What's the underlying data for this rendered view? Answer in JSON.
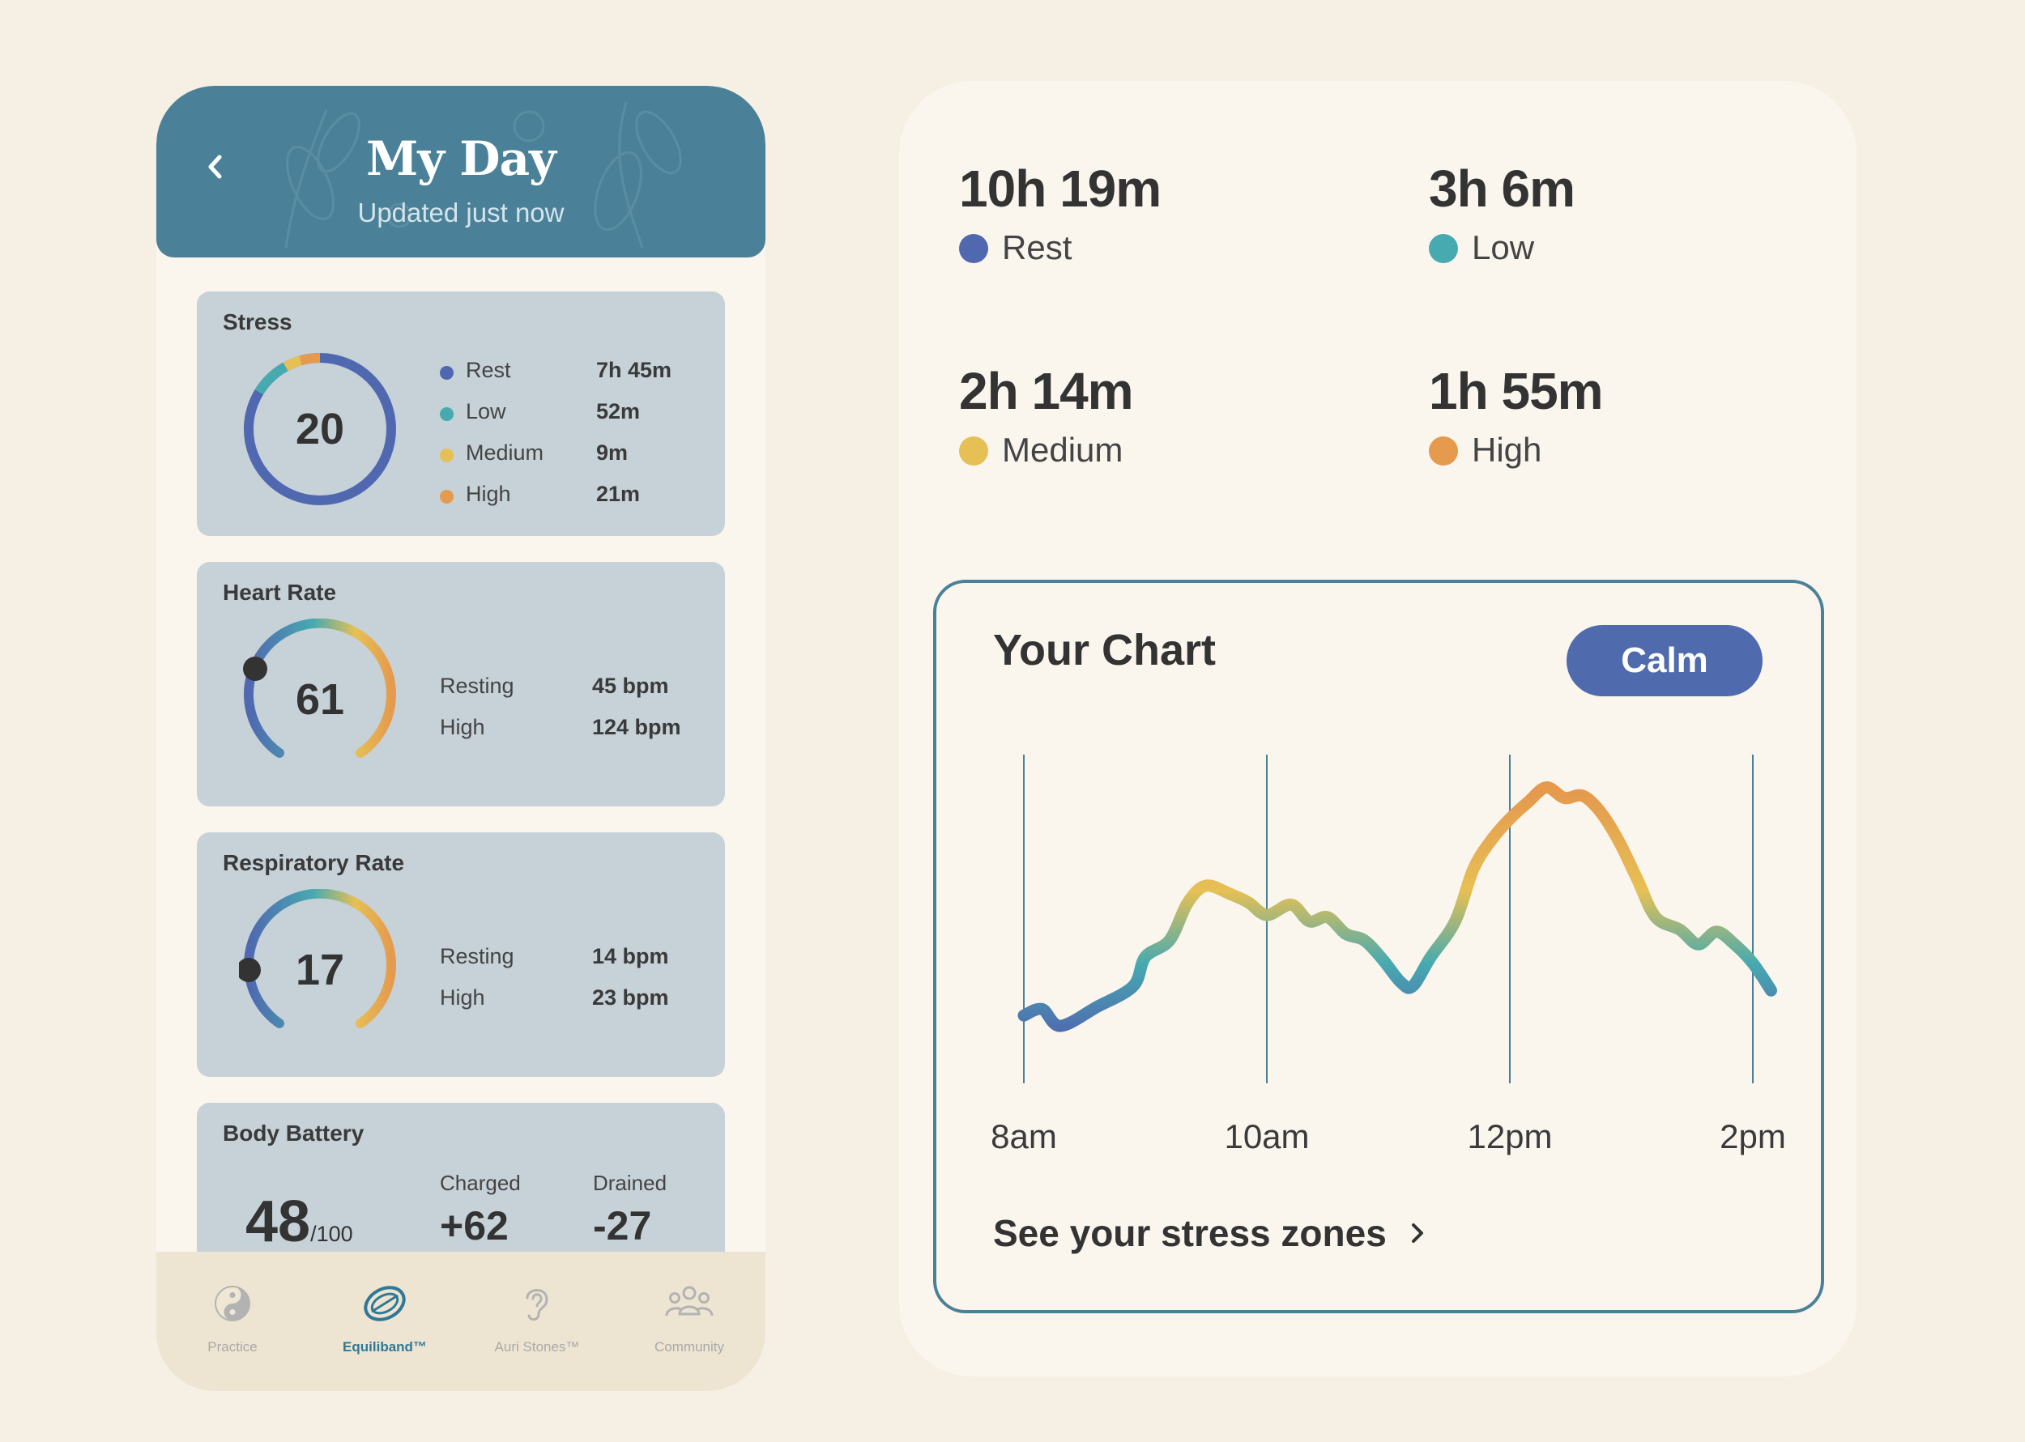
{
  "header": {
    "title": "My Day",
    "subtitle": "Updated just now"
  },
  "stress": {
    "title": "Stress",
    "score": "20",
    "rows": [
      {
        "label": "Rest",
        "value": "7h 45m",
        "color": "#4f68b0"
      },
      {
        "label": "Low",
        "value": "52m",
        "color": "#47aab0"
      },
      {
        "label": "Medium",
        "value": "9m",
        "color": "#e6c054"
      },
      {
        "label": "High",
        "value": "21m",
        "color": "#e59a4e"
      }
    ]
  },
  "heart_rate": {
    "title": "Heart Rate",
    "value": "61",
    "rows": [
      {
        "label": "Resting",
        "value": "45 bpm"
      },
      {
        "label": "High",
        "value": "124 bpm"
      }
    ]
  },
  "respiratory_rate": {
    "title": "Respiratory Rate",
    "value": "17",
    "rows": [
      {
        "label": "Resting",
        "value": "14 bpm"
      },
      {
        "label": "High",
        "value": "23 bpm"
      }
    ]
  },
  "body_battery": {
    "title": "Body Battery",
    "value": "48",
    "max": "/100",
    "charged_label": "Charged",
    "charged_value": "+62",
    "drained_label": "Drained",
    "drained_value": "-27"
  },
  "tabs": [
    {
      "label": "Practice",
      "icon": "yin-yang-icon",
      "active": false
    },
    {
      "label": "Equiliband™",
      "icon": "band-icon",
      "active": true
    },
    {
      "label": "Auri Stones™",
      "icon": "ear-icon",
      "active": false
    },
    {
      "label": "Community",
      "icon": "people-icon",
      "active": false
    }
  ],
  "summary": [
    {
      "time": "10h 19m",
      "label": "Rest",
      "color": "#4f68b0"
    },
    {
      "time": "3h 6m",
      "label": "Low",
      "color": "#47aab0"
    },
    {
      "time": "2h 14m",
      "label": "Medium",
      "color": "#e6c054"
    },
    {
      "time": "1h 55m",
      "label": "High",
      "color": "#e59a4e"
    }
  ],
  "chart": {
    "title": "Your Chart",
    "badge": "Calm",
    "link": "See your stress zones",
    "tick_labels": [
      "8am",
      "10am",
      "12pm",
      "2pm"
    ]
  },
  "chart_data": {
    "type": "line",
    "xlabel": "",
    "ylabel": "",
    "x_ticks": [
      "8am",
      "10am",
      "12pm",
      "2pm"
    ],
    "x_hours": [
      8.0,
      8.15,
      8.3,
      8.6,
      8.9,
      9.0,
      9.2,
      9.35,
      9.5,
      9.7,
      9.85,
      10.0,
      10.2,
      10.35,
      10.5,
      10.65,
      10.8,
      10.95,
      11.1,
      11.2,
      11.35,
      11.55,
      11.7,
      11.85,
      12.0,
      12.15,
      12.3,
      12.45,
      12.6,
      12.75,
      12.9,
      13.05,
      13.2,
      13.4,
      13.55,
      13.7,
      13.85,
      14.0,
      14.15
    ],
    "values": [
      10,
      13,
      5,
      14,
      24,
      38,
      46,
      64,
      72,
      68,
      64,
      58,
      63,
      55,
      57,
      49,
      46,
      37,
      26,
      24,
      38,
      55,
      80,
      94,
      104,
      112,
      119,
      114,
      115,
      107,
      93,
      75,
      57,
      51,
      44,
      50,
      44,
      35,
      22
    ],
    "ylim": [
      0,
      120
    ],
    "gradient_colors": [
      "#4f68b0",
      "#47aab0",
      "#e6c054",
      "#e59a4e"
    ],
    "grid": "vertical"
  }
}
